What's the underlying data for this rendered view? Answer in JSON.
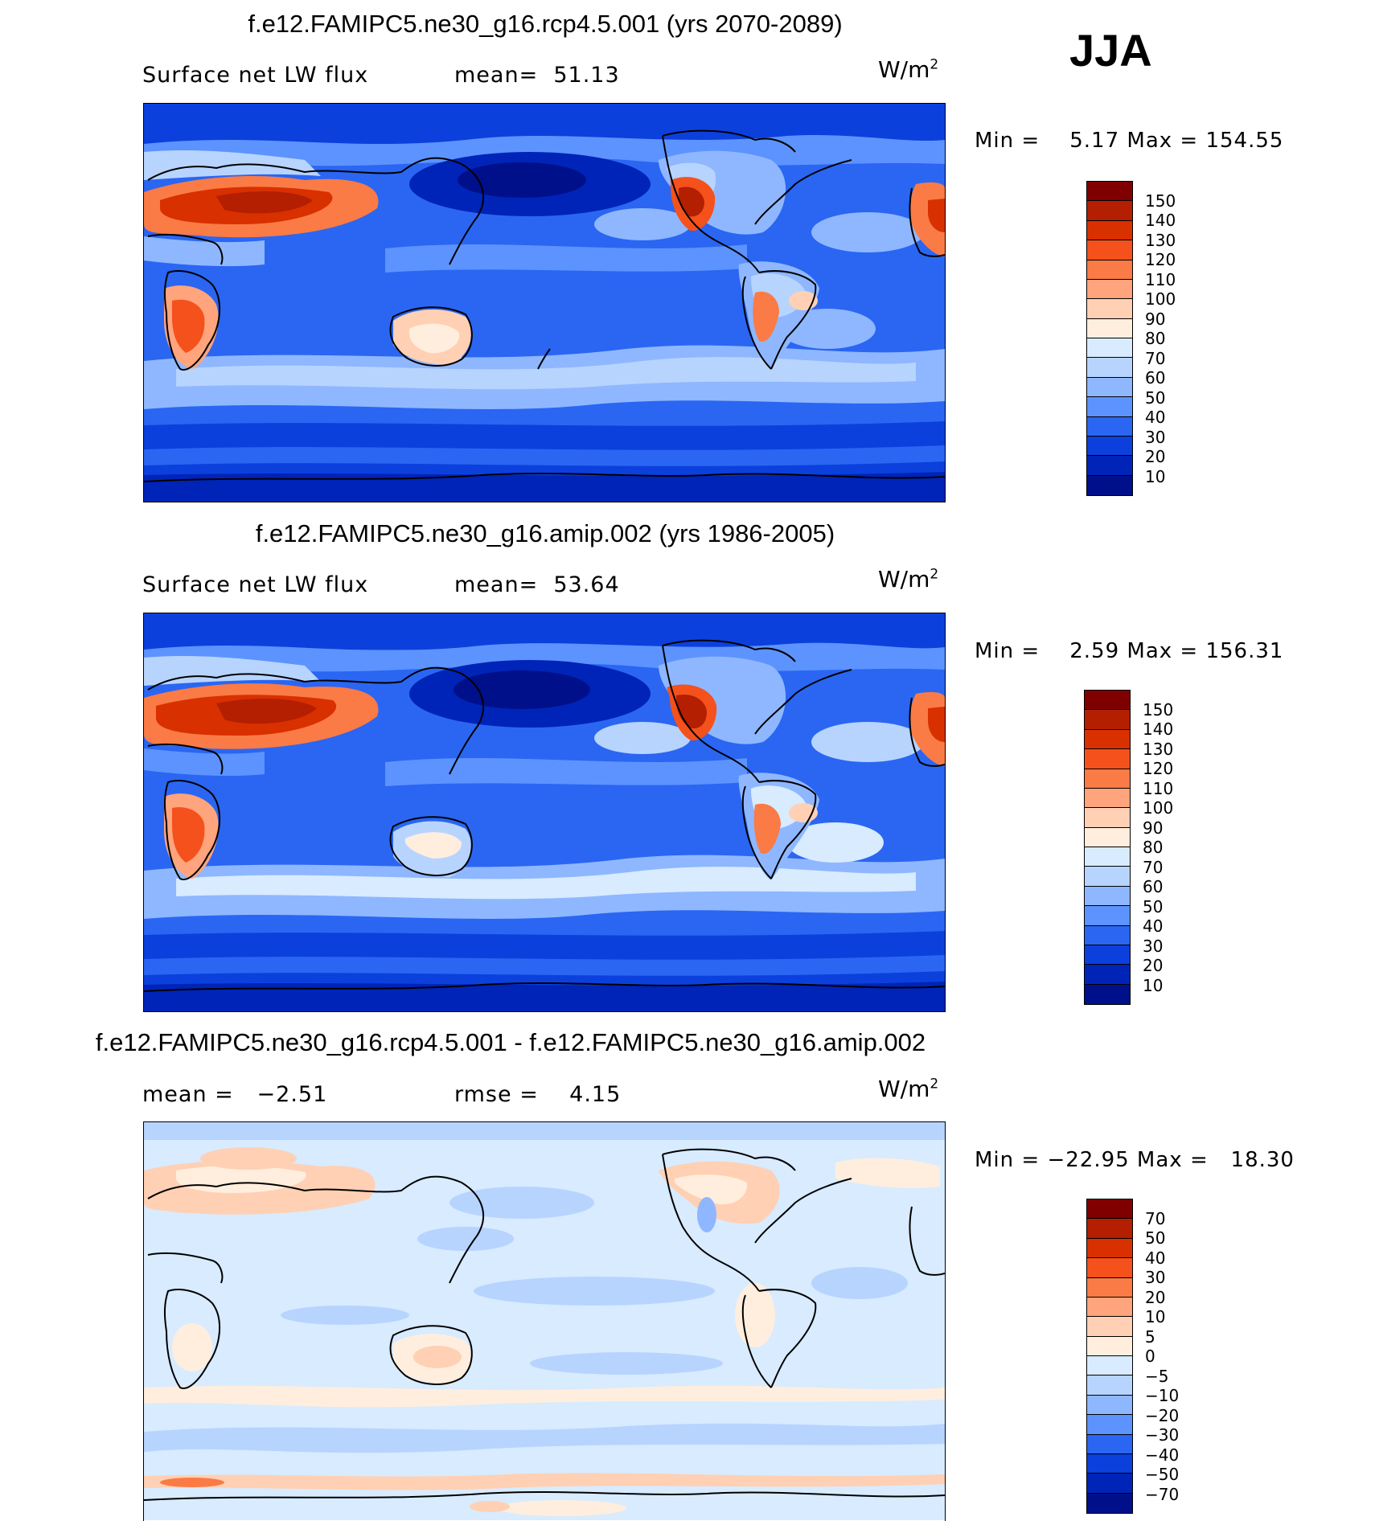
{
  "season": "JJA",
  "panels": [
    {
      "id": "rcp",
      "title": "f.e12.FAMIPC5.ne30_g16.rcp4.5.001 (yrs 2070-2089)",
      "left_text": "Surface net LW flux",
      "stat_text": "mean=  51.13",
      "units_base": "W/m",
      "units_exp": "2",
      "minmax": "Min =    5.17 Max = 154.55",
      "colorbar": {
        "labels": [
          "150",
          "140",
          "130",
          "120",
          "110",
          "100",
          "90",
          "80",
          "70",
          "60",
          "50",
          "40",
          "30",
          "20",
          "10"
        ],
        "colors": [
          "#800000",
          "#b31f00",
          "#d93000",
          "#f5511c",
          "#fa7b45",
          "#ffa47c",
          "#ffd0b4",
          "#ffeedd",
          "#d8ebff",
          "#b7d4ff",
          "#8fb7ff",
          "#5c93ff",
          "#2a66f2",
          "#0c40dc",
          "#0024b8",
          "#00108a"
        ]
      }
    },
    {
      "id": "amip",
      "title": "f.e12.FAMIPC5.ne30_g16.amip.002 (yrs 1986-2005)",
      "left_text": "Surface net LW flux",
      "stat_text": "mean=  53.64",
      "units_base": "W/m",
      "units_exp": "2",
      "minmax": "Min =    2.59 Max = 156.31",
      "colorbar": {
        "labels": [
          "150",
          "140",
          "130",
          "120",
          "110",
          "100",
          "90",
          "80",
          "70",
          "60",
          "50",
          "40",
          "30",
          "20",
          "10"
        ],
        "colors": [
          "#800000",
          "#b31f00",
          "#d93000",
          "#f5511c",
          "#fa7b45",
          "#ffa47c",
          "#ffd0b4",
          "#ffeedd",
          "#d8ebff",
          "#b7d4ff",
          "#8fb7ff",
          "#5c93ff",
          "#2a66f2",
          "#0c40dc",
          "#0024b8",
          "#00108a"
        ]
      }
    },
    {
      "id": "diff",
      "title": "f.e12.FAMIPC5.ne30_g16.rcp4.5.001 - f.e12.FAMIPC5.ne30_g16.amip.002",
      "left_text": "mean =   −2.51",
      "stat_text": "rmse =    4.15",
      "units_base": "W/m",
      "units_exp": "2",
      "minmax": "Min = −22.95 Max =   18.30",
      "colorbar": {
        "labels": [
          "70",
          "50",
          "40",
          "30",
          "20",
          "10",
          "5",
          "0",
          "−5",
          "−10",
          "−20",
          "−30",
          "−40",
          "−50",
          "−70"
        ],
        "colors": [
          "#800000",
          "#b31f00",
          "#d93000",
          "#f5511c",
          "#fa7b45",
          "#ffa47c",
          "#ffd0b4",
          "#ffeedd",
          "#d8ebff",
          "#b7d4ff",
          "#8fb7ff",
          "#5c93ff",
          "#2a66f2",
          "#0c40dc",
          "#0024b8",
          "#00108a"
        ]
      }
    }
  ]
}
